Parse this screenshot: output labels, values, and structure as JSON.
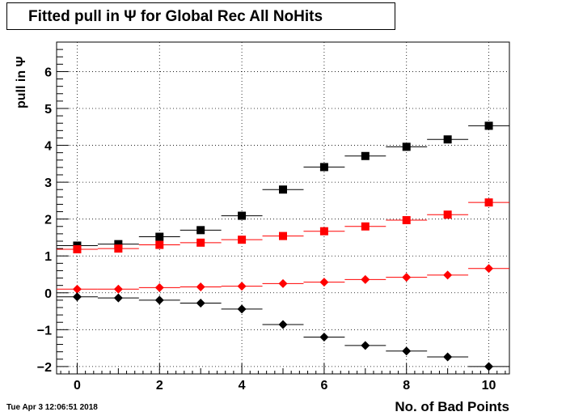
{
  "header": {
    "title": "Fitted pull in  Ψ  for Global Rec All NoHits"
  },
  "footer": {
    "timestamp": "Tue Apr  3 12:06:51 2018"
  },
  "chart_data": {
    "type": "scatter",
    "title": "Fitted pull in  Ψ  for Global Rec All NoHits",
    "xlabel": "No. of Bad Points",
    "ylabel": "pull in  Ψ",
    "xlim": [
      -0.5,
      10.5
    ],
    "ylim": [
      -2.2,
      6.8
    ],
    "xticks": [
      0,
      2,
      4,
      6,
      8,
      10
    ],
    "yticks": [
      -2,
      -1,
      0,
      1,
      2,
      3,
      4,
      5,
      6
    ],
    "ytick_labels": [
      "−2",
      "−1",
      "0",
      "1",
      "2",
      "3",
      "4",
      "5",
      "6"
    ],
    "grid": true,
    "x": [
      0,
      1,
      2,
      3,
      4,
      5,
      6,
      7,
      8,
      9,
      10
    ],
    "series": [
      {
        "marker": "square",
        "color": "#000000",
        "values": [
          1.28,
          1.32,
          1.52,
          1.7,
          2.09,
          2.8,
          3.41,
          3.71,
          3.96,
          4.16,
          4.53
        ]
      },
      {
        "marker": "square",
        "color": "#ff0000",
        "values": [
          1.18,
          1.2,
          1.3,
          1.36,
          1.44,
          1.54,
          1.67,
          1.8,
          1.97,
          2.12,
          2.45
        ]
      },
      {
        "marker": "diamond",
        "color": "#ff0000",
        "values": [
          0.1,
          0.1,
          0.14,
          0.16,
          0.18,
          0.25,
          0.29,
          0.36,
          0.42,
          0.48,
          0.66
        ]
      },
      {
        "marker": "diamond",
        "color": "#000000",
        "values": [
          -0.11,
          -0.14,
          -0.2,
          -0.28,
          -0.44,
          -0.86,
          -1.2,
          -1.43,
          -1.58,
          -1.74,
          -2.0
        ]
      }
    ]
  }
}
